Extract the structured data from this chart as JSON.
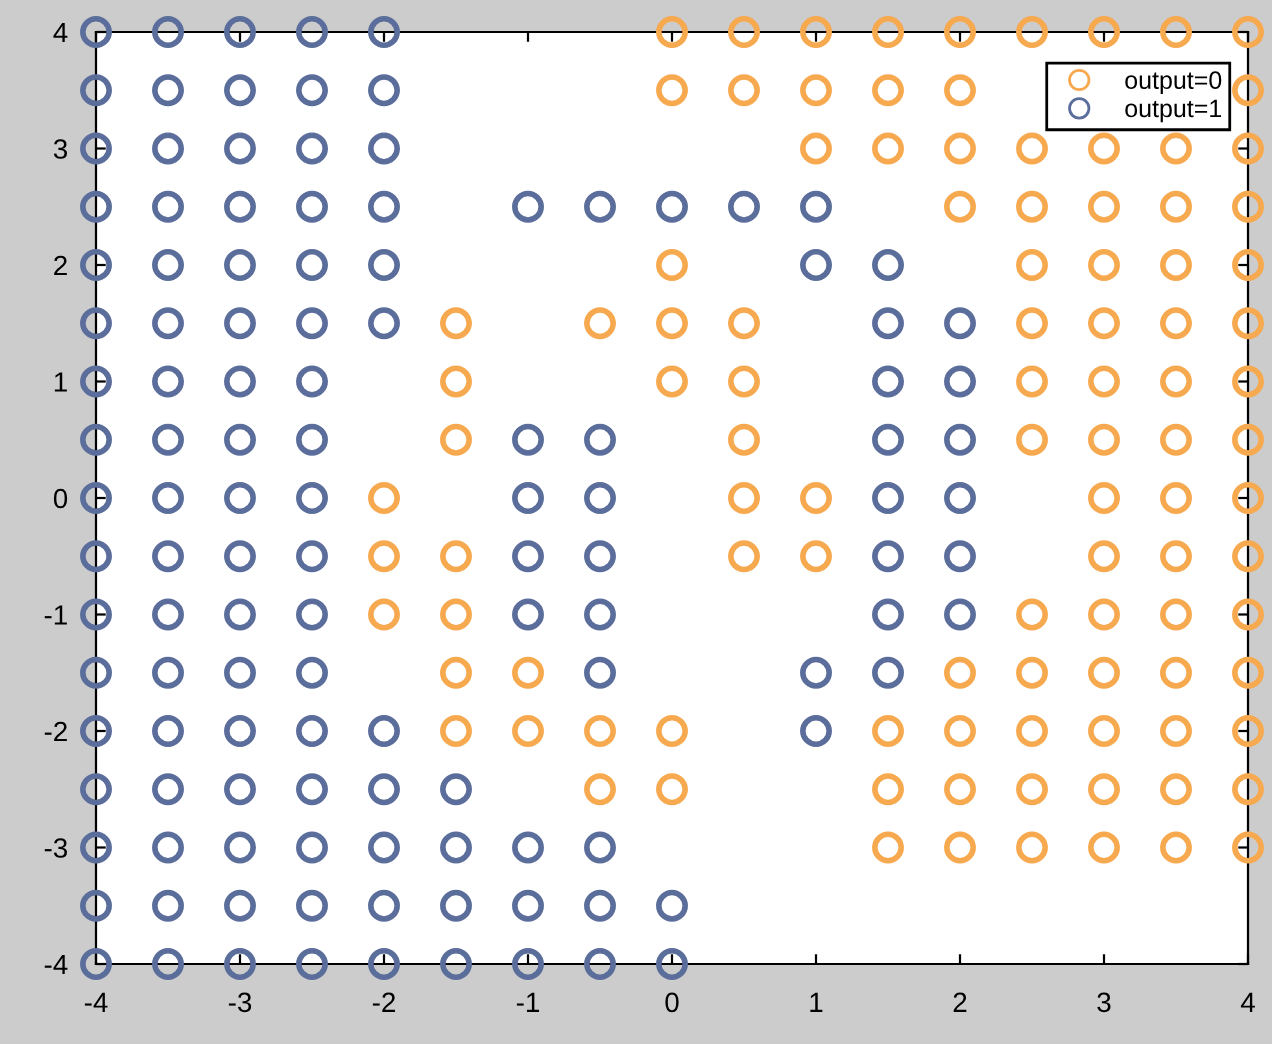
{
  "chart_data": {
    "type": "scatter",
    "marker": "circle",
    "legend": "top right",
    "grid": false,
    "xlim": [
      -4,
      4
    ],
    "ylim": [
      -4,
      4
    ],
    "xticks": [
      -4,
      -3,
      -2,
      -1,
      0,
      1,
      2,
      3,
      4
    ],
    "yticks": [
      -4,
      -3,
      -2,
      -1,
      0,
      1,
      2,
      3,
      4
    ],
    "series": [
      {
        "name": "output=0",
        "color": "#f7a94f",
        "x": [
          0,
          0.5,
          1,
          1.5,
          2,
          2.5,
          3,
          3.5,
          4,
          0,
          0.5,
          1,
          1.5,
          2,
          4,
          1,
          1.5,
          2,
          2.5,
          3,
          3.5,
          4,
          2,
          2.5,
          3,
          3.5,
          4,
          2.5,
          3,
          3.5,
          4,
          2.5,
          3,
          3.5,
          4,
          2.5,
          3,
          3.5,
          4,
          2.5,
          3,
          3.5,
          4,
          3,
          3.5,
          4,
          3,
          3.5,
          4,
          2.5,
          3,
          3.5,
          4,
          2,
          2.5,
          3,
          3.5,
          4,
          1.5,
          2,
          2.5,
          3,
          3.5,
          4,
          1.5,
          2,
          2.5,
          3,
          3.5,
          4,
          1.5,
          2,
          2.5,
          3,
          3.5,
          4,
          0,
          -0.5,
          0,
          0.5,
          0,
          0.5,
          0.5,
          0.5,
          1,
          0.5,
          1,
          -1.5,
          -1.5,
          -1.5,
          -2,
          -2,
          -1.5,
          -2,
          -1.5,
          -1.5,
          -1,
          -1.5,
          -1,
          -0.5,
          0,
          -0.5,
          0
        ],
        "values": [
          4,
          4,
          4,
          4,
          4,
          4,
          4,
          4,
          4,
          3.5,
          3.5,
          3.5,
          3.5,
          3.5,
          3.5,
          3,
          3,
          3,
          3,
          3,
          3,
          3,
          2.5,
          2.5,
          2.5,
          2.5,
          2.5,
          2,
          2,
          2,
          2,
          1.5,
          1.5,
          1.5,
          1.5,
          1,
          1,
          1,
          1,
          0.5,
          0.5,
          0.5,
          0.5,
          0,
          0,
          0,
          -0.5,
          -0.5,
          -0.5,
          -1,
          -1,
          -1,
          -1,
          -1.5,
          -1.5,
          -1.5,
          -1.5,
          -1.5,
          -2,
          -2,
          -2,
          -2,
          -2,
          -2,
          -2.5,
          -2.5,
          -2.5,
          -2.5,
          -2.5,
          -2.5,
          -3,
          -3,
          -3,
          -3,
          -3,
          -3,
          2,
          1.5,
          1.5,
          1.5,
          1,
          1,
          0.5,
          0,
          0,
          -0.5,
          -0.5,
          1.5,
          1,
          0.5,
          0,
          -0.5,
          -0.5,
          -1,
          -1,
          -1.5,
          -1.5,
          -2,
          -2,
          -2,
          -2,
          -2.5,
          -2.5
        ]
      },
      {
        "name": "output=1",
        "color": "#5a6d9b",
        "x": [
          -4,
          -3.5,
          -3,
          -2.5,
          -2,
          -4,
          -3.5,
          -3,
          -2.5,
          -2,
          -4,
          -3.5,
          -3,
          -2.5,
          -2,
          -4,
          -3.5,
          -3,
          -2.5,
          -2,
          -4,
          -3.5,
          -3,
          -2.5,
          -2,
          -4,
          -3.5,
          -3,
          -2.5,
          -2,
          -4,
          -3.5,
          -3,
          -2.5,
          -4,
          -3.5,
          -3,
          -2.5,
          -4,
          -3.5,
          -3,
          -2.5,
          -4,
          -3.5,
          -3,
          -2.5,
          -4,
          -3.5,
          -3,
          -2.5,
          -4,
          -3.5,
          -3,
          -2.5,
          -4,
          -3.5,
          -3,
          -2.5,
          -2,
          -4,
          -3.5,
          -3,
          -2.5,
          -2,
          -1.5,
          -4,
          -3.5,
          -3,
          -2.5,
          -2,
          -1.5,
          -1,
          -0.5,
          -4,
          -3.5,
          -3,
          -2.5,
          -2,
          -1.5,
          -1,
          -0.5,
          0,
          -4,
          -3.5,
          -3,
          -2.5,
          -2,
          -1.5,
          -1,
          -0.5,
          0,
          -1,
          -0.5,
          0,
          0.5,
          1,
          1,
          1.5,
          1.5,
          2,
          1.5,
          2,
          1.5,
          2,
          1.5,
          2,
          1.5,
          2,
          1.5,
          2,
          1,
          1.5,
          1,
          -1,
          -0.5,
          -1,
          -0.5,
          -1,
          -0.5,
          -1,
          -0.5,
          -0.5
        ],
        "values": [
          4,
          4,
          4,
          4,
          4,
          3.5,
          3.5,
          3.5,
          3.5,
          3.5,
          3,
          3,
          3,
          3,
          3,
          2.5,
          2.5,
          2.5,
          2.5,
          2.5,
          2,
          2,
          2,
          2,
          2,
          1.5,
          1.5,
          1.5,
          1.5,
          1.5,
          1,
          1,
          1,
          1,
          0.5,
          0.5,
          0.5,
          0.5,
          0,
          0,
          0,
          0,
          -0.5,
          -0.5,
          -0.5,
          -0.5,
          -1,
          -1,
          -1,
          -1,
          -1.5,
          -1.5,
          -1.5,
          -1.5,
          -2,
          -2,
          -2,
          -2,
          -2,
          -2.5,
          -2.5,
          -2.5,
          -2.5,
          -2.5,
          -2.5,
          -3,
          -3,
          -3,
          -3,
          -3,
          -3,
          -3,
          -3,
          -3.5,
          -3.5,
          -3.5,
          -3.5,
          -3.5,
          -3.5,
          -3.5,
          -3.5,
          -3.5,
          -4,
          -4,
          -4,
          -4,
          -4,
          -4,
          -4,
          -4,
          -4,
          2.5,
          2.5,
          2.5,
          2.5,
          2.5,
          2,
          2,
          1.5,
          1.5,
          1,
          1,
          0.5,
          0.5,
          0,
          0,
          -0.5,
          -0.5,
          -1,
          -1,
          -1.5,
          -1.5,
          -2,
          0.5,
          0.5,
          0,
          0,
          -0.5,
          -0.5,
          -1,
          -1,
          -1.5
        ]
      }
    ]
  }
}
